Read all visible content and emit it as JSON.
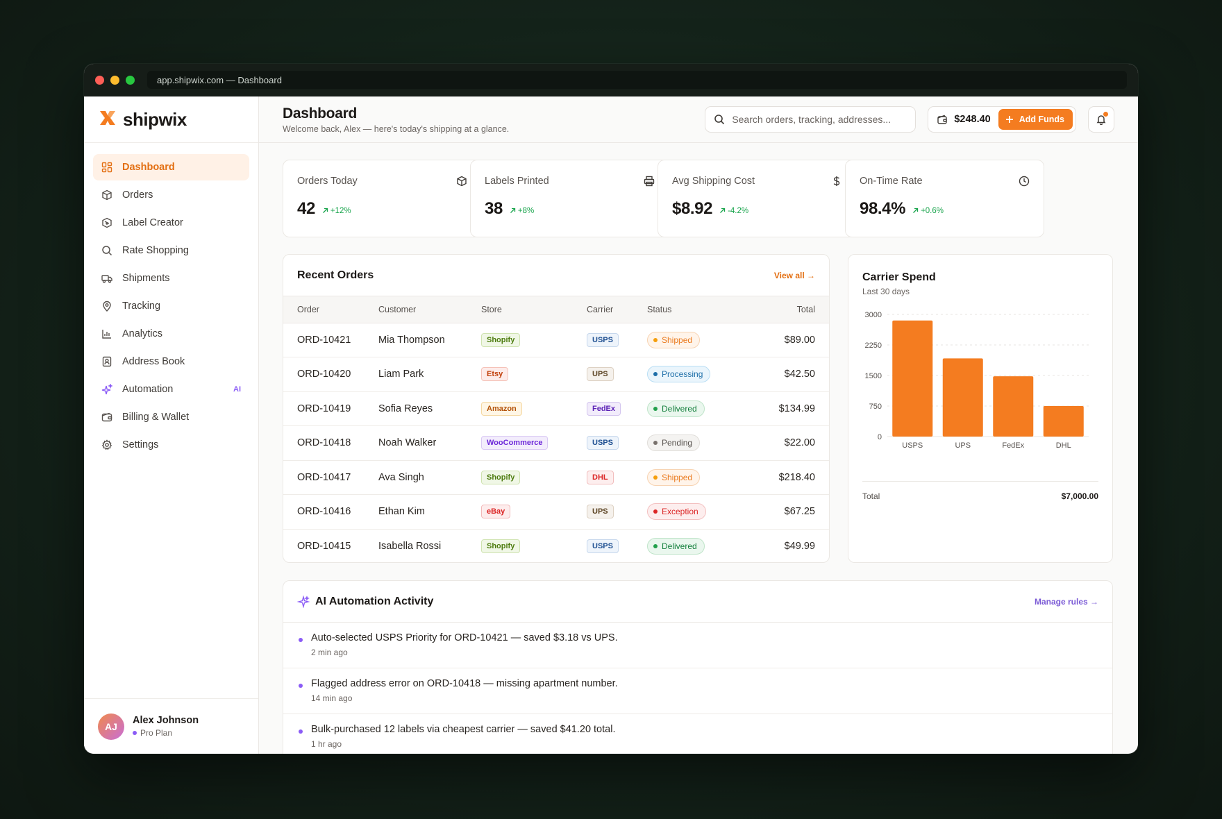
{
  "browser": {
    "url": "app.shipwix.com — Dashboard"
  },
  "brand": {
    "name": "shipwix",
    "accent": "#f47c20"
  },
  "sidebar": {
    "items": [
      {
        "label": "Dashboard",
        "icon": "dashboard-icon",
        "active": true
      },
      {
        "label": "Orders",
        "icon": "box-icon"
      },
      {
        "label": "Label Creator",
        "icon": "label-icon"
      },
      {
        "label": "Rate Shopping",
        "icon": "search-icon"
      },
      {
        "label": "Shipments",
        "icon": "truck-icon"
      },
      {
        "label": "Tracking",
        "icon": "map-pin-icon"
      },
      {
        "label": "Analytics",
        "icon": "bar-chart-icon"
      },
      {
        "label": "Address Book",
        "icon": "address-book-icon"
      },
      {
        "label": "Automation",
        "icon": "sparkle-icon",
        "badge": "AI"
      },
      {
        "label": "Billing & Wallet",
        "icon": "wallet-icon"
      },
      {
        "label": "Settings",
        "icon": "gear-icon"
      }
    ],
    "user": {
      "initials": "AJ",
      "name": "Alex Johnson",
      "plan": "Pro Plan"
    }
  },
  "header": {
    "title": "Dashboard",
    "subtitle": "Welcome back, Alex — here's today's shipping at a glance.",
    "search_placeholder": "Search orders, tracking, addresses...",
    "balance": "$248.40",
    "add_funds_label": "Add Funds"
  },
  "stats": [
    {
      "label": "Orders Today",
      "value": "42",
      "delta": "+12%",
      "icon": "box-icon"
    },
    {
      "label": "Labels Printed",
      "value": "38",
      "delta": "+8%",
      "icon": "printer-icon"
    },
    {
      "label": "Avg Shipping Cost",
      "value": "$8.92",
      "delta": "-4.2%",
      "icon": "dollar-icon"
    },
    {
      "label": "On-Time Rate",
      "value": "98.4%",
      "delta": "+0.6%",
      "icon": "clock-icon"
    }
  ],
  "orders": {
    "title": "Recent Orders",
    "view_all": "View all →",
    "columns": [
      "Order",
      "Customer",
      "Store",
      "Carrier",
      "Status",
      "Total"
    ],
    "rows": [
      {
        "order": "ORD-10421",
        "customer": "Mia Thompson",
        "store": "Shopify",
        "carrier": "USPS",
        "status": "Shipped",
        "total": "$89.00"
      },
      {
        "order": "ORD-10420",
        "customer": "Liam Park",
        "store": "Etsy",
        "carrier": "UPS",
        "status": "Processing",
        "total": "$42.50"
      },
      {
        "order": "ORD-10419",
        "customer": "Sofia Reyes",
        "store": "Amazon",
        "carrier": "FedEx",
        "status": "Delivered",
        "total": "$134.99"
      },
      {
        "order": "ORD-10418",
        "customer": "Noah Walker",
        "store": "WooCommerce",
        "carrier": "USPS",
        "status": "Pending",
        "total": "$22.00"
      },
      {
        "order": "ORD-10417",
        "customer": "Ava Singh",
        "store": "Shopify",
        "carrier": "DHL",
        "status": "Shipped",
        "total": "$218.40"
      },
      {
        "order": "ORD-10416",
        "customer": "Ethan Kim",
        "store": "eBay",
        "carrier": "UPS",
        "status": "Exception",
        "total": "$67.25"
      },
      {
        "order": "ORD-10415",
        "customer": "Isabella Rossi",
        "store": "Shopify",
        "carrier": "USPS",
        "status": "Delivered",
        "total": "$49.99"
      }
    ]
  },
  "chart_data": {
    "type": "bar",
    "title": "Carrier Spend",
    "subtitle": "Last 30 days",
    "categories": [
      "USPS",
      "UPS",
      "FedEx",
      "DHL"
    ],
    "values": [
      2850,
      1920,
      1480,
      750
    ],
    "ylim": [
      0,
      3000
    ],
    "yticks": [
      "3000",
      "2250",
      "1500",
      "750",
      "0"
    ],
    "grid": true,
    "color": "#f47c20",
    "total_label": "Total",
    "total_value": "$7,000.00"
  },
  "ai_activity": {
    "title": "AI Automation Activity",
    "manage_link": "Manage rules →",
    "items": [
      {
        "text": "Auto-selected USPS Priority for ORD-10421 — saved $3.18 vs UPS.",
        "time": "2 min ago"
      },
      {
        "text": "Flagged address error on ORD-10418 — missing apartment number.",
        "time": "14 min ago"
      },
      {
        "text": "Bulk-purchased 12 labels via cheapest carrier — saved $41.20 total.",
        "time": "1 hr ago"
      }
    ]
  }
}
